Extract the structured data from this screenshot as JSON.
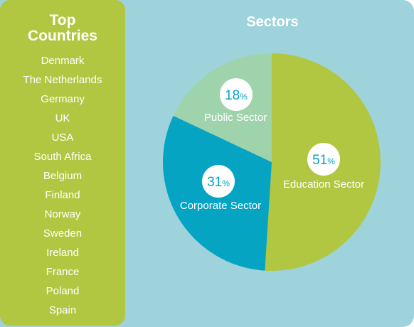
{
  "countries": {
    "title_line1": "Top",
    "title_line2": "Countries",
    "items": [
      "Denmark",
      "The Netherlands",
      "Germany",
      "UK",
      "USA",
      "South Africa",
      "Belgium",
      "Finland",
      "Norway",
      "Sweden",
      "Ireland",
      "France",
      "Poland",
      "Spain"
    ]
  },
  "colors": {
    "left_panel": "#b2c741",
    "right_panel": "#9ed3dc",
    "education": "#b2c741",
    "corporate": "#05a4c3",
    "public": "#9ed3ac",
    "label_text": "#ffffff",
    "percent_text": "#05a4c3",
    "badge": "#ffffff"
  },
  "chart_data": {
    "type": "pie",
    "title": "Sectors",
    "percent_symbol": "%",
    "slices": [
      {
        "label": "Education Sector",
        "value": 51,
        "color": "#b2c741"
      },
      {
        "label": "Corporate Sector",
        "value": 31,
        "color": "#05a4c3"
      },
      {
        "label": "Public Sector",
        "value": 18,
        "color": "#9ed3ac"
      }
    ]
  }
}
